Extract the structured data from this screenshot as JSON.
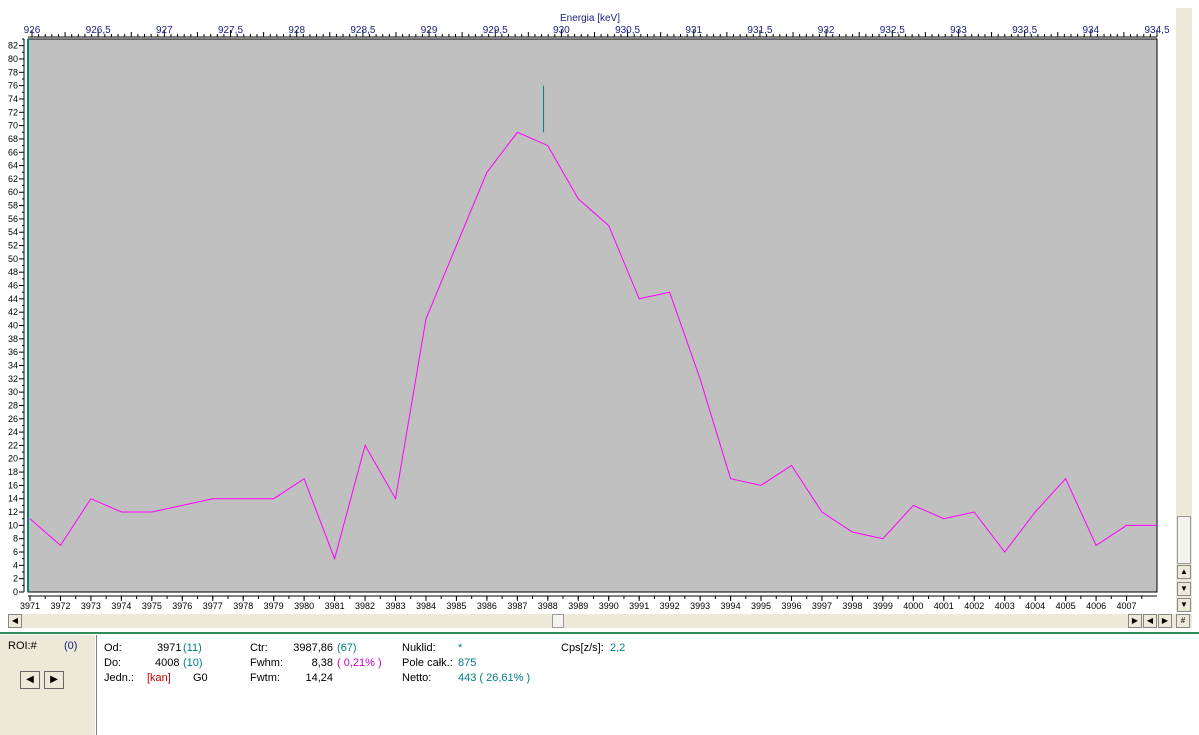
{
  "chart_data": {
    "type": "line",
    "x_top_label": "Energia [keV]",
    "x_top_ticks": [
      "926",
      "926,5",
      "927",
      "927,5",
      "928",
      "928,5",
      "929",
      "929,5",
      "930",
      "930,5",
      "931",
      "931,5",
      "932",
      "932,5",
      "933",
      "933,5",
      "934",
      "934,5"
    ],
    "x_top_range": [
      926,
      934.5
    ],
    "x": [
      3971,
      3972,
      3973,
      3974,
      3975,
      3976,
      3977,
      3978,
      3979,
      3980,
      3981,
      3982,
      3983,
      3984,
      3985,
      3986,
      3987,
      3988,
      3989,
      3990,
      3991,
      3992,
      3993,
      3994,
      3995,
      3996,
      3997,
      3998,
      3999,
      4000,
      4001,
      4002,
      4003,
      4004,
      4005,
      4006,
      4007,
      4008
    ],
    "y": [
      11,
      7,
      14,
      12,
      12,
      13,
      14,
      14,
      14,
      17,
      5,
      22,
      14,
      41,
      52,
      63,
      69,
      67,
      59,
      55,
      44,
      45,
      32,
      17,
      16,
      19,
      12,
      9,
      8,
      13,
      11,
      12,
      6,
      12,
      17,
      7,
      10,
      10
    ],
    "xlim": [
      3971,
      4008
    ],
    "ylim": [
      0,
      83
    ],
    "y_ticks": [
      0,
      2,
      4,
      6,
      8,
      10,
      12,
      14,
      16,
      18,
      20,
      22,
      24,
      26,
      28,
      30,
      32,
      34,
      36,
      38,
      40,
      42,
      44,
      46,
      48,
      50,
      52,
      54,
      56,
      58,
      60,
      62,
      64,
      66,
      68,
      70,
      72,
      74,
      76,
      78,
      80,
      82
    ],
    "x_tick_labels": [
      3971,
      3972,
      3973,
      3974,
      3975,
      3976,
      3977,
      3978,
      3979,
      3980,
      3981,
      3982,
      3983,
      3984,
      3985,
      3986,
      3987,
      3988,
      3989,
      3990,
      3991,
      3992,
      3993,
      3994,
      3995,
      3996,
      3997,
      3998,
      3999,
      4000,
      4001,
      4002,
      4003,
      4004,
      4005,
      4006,
      4007
    ],
    "marker_x": 3987.86,
    "marker_y_range": [
      69,
      76
    ],
    "line_color": "#ff00ff",
    "plot_bg": "#c0c0c0",
    "marker_color": "#008080",
    "grid": false
  },
  "roi": {
    "label": "ROI:#",
    "value": "(0)",
    "prev_icon": "arrow-left-icon",
    "next_icon": "arrow-right-icon",
    "prev_glyph": "◀",
    "next_glyph": "▶"
  },
  "info": {
    "od_label": "Od:",
    "od_value": "3971",
    "od_extra": "(11)",
    "do_label": "Do:",
    "do_value": "4008",
    "do_extra": "(10)",
    "jedn_label": "Jedn.:",
    "jedn_value": "[kan]",
    "jedn_extra": "G0",
    "ctr_label": "Ctr:",
    "ctr_value": "3987,86",
    "ctr_extra": "(67)",
    "fwhm_label": "Fwhm:",
    "fwhm_value": "8,38",
    "fwhm_extra": "( 0,21% )",
    "fwtm_label": "Fwtm:",
    "fwtm_value": "14,24",
    "nuklid_label": "Nuklid:",
    "nuklid_value": "*",
    "pole_label": "Pole całk.:",
    "pole_value": "875",
    "netto_label": "Netto:",
    "netto_value": "443 ( 26,61% )",
    "cps_label": "Cps[z/s]:",
    "cps_value": "2,2"
  },
  "scroll": {
    "up": "▲",
    "down": "▼",
    "up2": "▲",
    "down2": "▼",
    "left": "◀",
    "right": "▶",
    "end_right": "▶|",
    "end_left": "|◀",
    "hash": "#"
  }
}
